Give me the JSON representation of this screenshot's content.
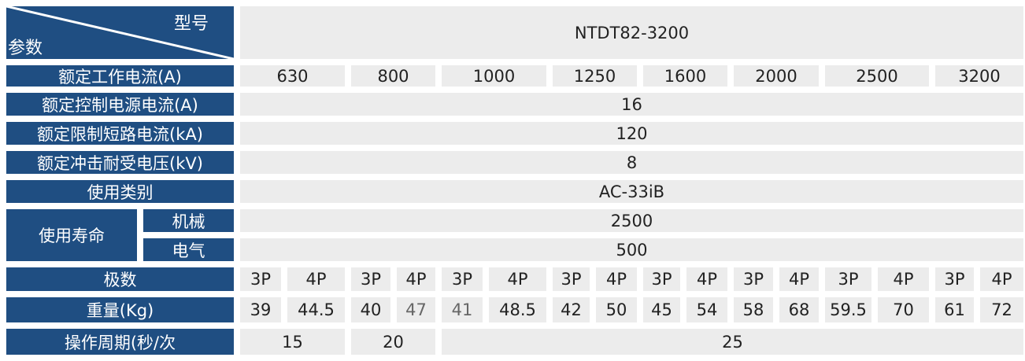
{
  "header": {
    "model_label": "型号",
    "param_label": "参数",
    "model": "NTDT82-3200"
  },
  "rows": {
    "rated_current": {
      "label": "额定工作电流(A)",
      "values": [
        "630",
        "800",
        "1000",
        "1250",
        "1600",
        "2000",
        "2500",
        "3200"
      ]
    },
    "control_current": {
      "label": "额定控制电源电流(A)",
      "value": "16"
    },
    "short_circuit": {
      "label": "额定限制短路电流(kA)",
      "value": "120"
    },
    "impulse_voltage": {
      "label": "额定冲击耐受电压(kV)",
      "value": "8"
    },
    "category": {
      "label": "使用类别",
      "value": "AC-33iB"
    },
    "life": {
      "label": "使用寿命",
      "mechanical_label": "机械",
      "mechanical": "2500",
      "electrical_label": "电气",
      "electrical": "500"
    },
    "poles": {
      "label": "极数",
      "values": [
        "3P",
        "4P",
        "3P",
        "4P",
        "3P",
        "4P",
        "3P",
        "4P",
        "3P",
        "4P",
        "3P",
        "4P",
        "3P",
        "4P",
        "3P",
        "4P"
      ]
    },
    "weight": {
      "label": "重量(Kg)",
      "values": [
        "39",
        "44.5",
        "40",
        "47",
        "41",
        "48.5",
        "42",
        "50",
        "45",
        "54",
        "58",
        "68",
        "59.5",
        "70",
        "61",
        "72"
      ]
    },
    "cycle": {
      "label": "操作周期(秒/次",
      "values": [
        "15",
        "20",
        "25"
      ]
    }
  },
  "colors": {
    "header_bg": "#1f4e82",
    "cell_bg": "#ececec"
  }
}
